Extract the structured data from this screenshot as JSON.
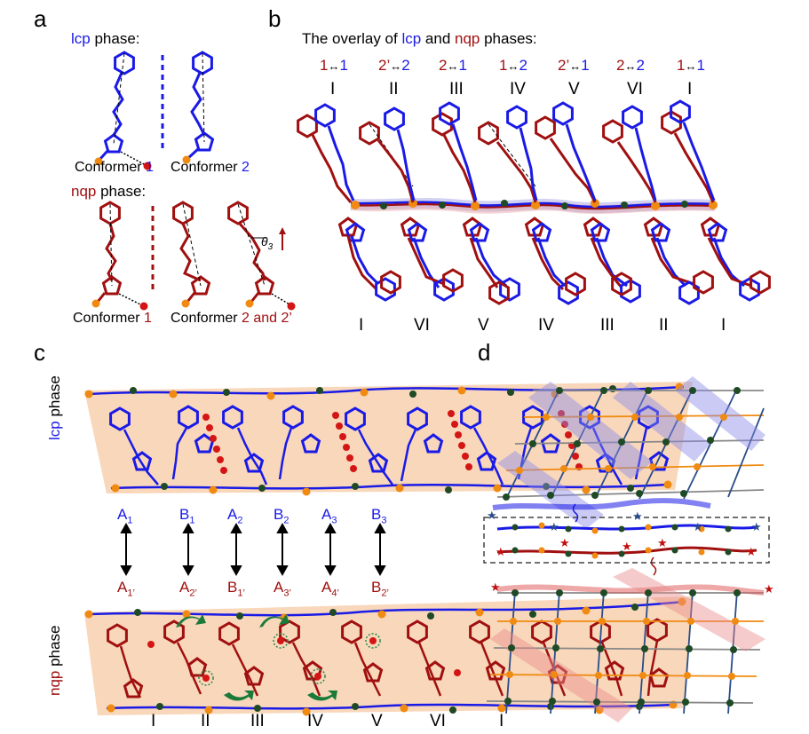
{
  "panels": {
    "a": {
      "label": "a",
      "lcp_heading": {
        "phase": "lcp",
        "rest": " phase:"
      },
      "nqp_heading": {
        "phase": "nqp",
        "rest": " phase:"
      },
      "conformers_lcp": [
        {
          "prefix": "Conformer ",
          "id": "1"
        },
        {
          "prefix": "Conformer ",
          "id": "2"
        }
      ],
      "conformers_nqp": [
        {
          "prefix": "Conformer ",
          "id": "1"
        },
        {
          "prefix": "Conformer ",
          "id": "2 and 2’"
        }
      ],
      "theta": {
        "symbol": "θ",
        "sub": "3"
      }
    },
    "b": {
      "label": "b",
      "title": {
        "pre": "The overlay of ",
        "a": "lcp",
        "mid": " and ",
        "b": "nqp",
        "post": " phases:"
      },
      "pairs": [
        {
          "left": "1",
          "right": "1",
          "roman": "I"
        },
        {
          "left": "2’",
          "right": "2",
          "roman": "II"
        },
        {
          "left": "2",
          "right": "1",
          "roman": "III"
        },
        {
          "left": "1",
          "right": "2",
          "roman": "IV"
        },
        {
          "left": "2’",
          "right": "1",
          "roman": "V"
        },
        {
          "left": "2",
          "right": "2",
          "roman": "VI"
        },
        {
          "left": "1",
          "right": "1",
          "roman": "I"
        }
      ],
      "arrow": "↔",
      "bottom_roman": [
        "I",
        "VI",
        "V",
        "IV",
        "III",
        "II",
        "I"
      ]
    },
    "c": {
      "label": "c",
      "lcp_side": {
        "phase": "lcp",
        "rest": " phase"
      },
      "nqp_side": {
        "phase": "nqp",
        "rest": " phase"
      },
      "top_row": [
        {
          "l": "A",
          "s": "1"
        },
        {
          "l": "B",
          "s": "1"
        },
        {
          "l": "A",
          "s": "2"
        },
        {
          "l": "B",
          "s": "2"
        },
        {
          "l": "A",
          "s": "3"
        },
        {
          "l": "B",
          "s": "3"
        }
      ],
      "bottom_row": [
        {
          "l": "A",
          "s": "1’"
        },
        {
          "l": "A",
          "s": "2’"
        },
        {
          "l": "B",
          "s": "1’"
        },
        {
          "l": "A",
          "s": "3’"
        },
        {
          "l": "A",
          "s": "4’"
        },
        {
          "l": "B",
          "s": "2’"
        }
      ],
      "bottom_roman": [
        "I",
        "II",
        "III",
        "IV",
        "V",
        "VI",
        "I"
      ]
    },
    "d": {
      "label": "d"
    }
  },
  "colors": {
    "lcp": "#1a1ae6",
    "nqp": "#a01010",
    "halo": "#f5c9a3",
    "node_orange": "#f08a10",
    "node_green": "#1f4a26",
    "node_gray": "#9a9a9a",
    "lcp_band": "#8c8cea",
    "nqp_band": "#ea8c8c"
  }
}
